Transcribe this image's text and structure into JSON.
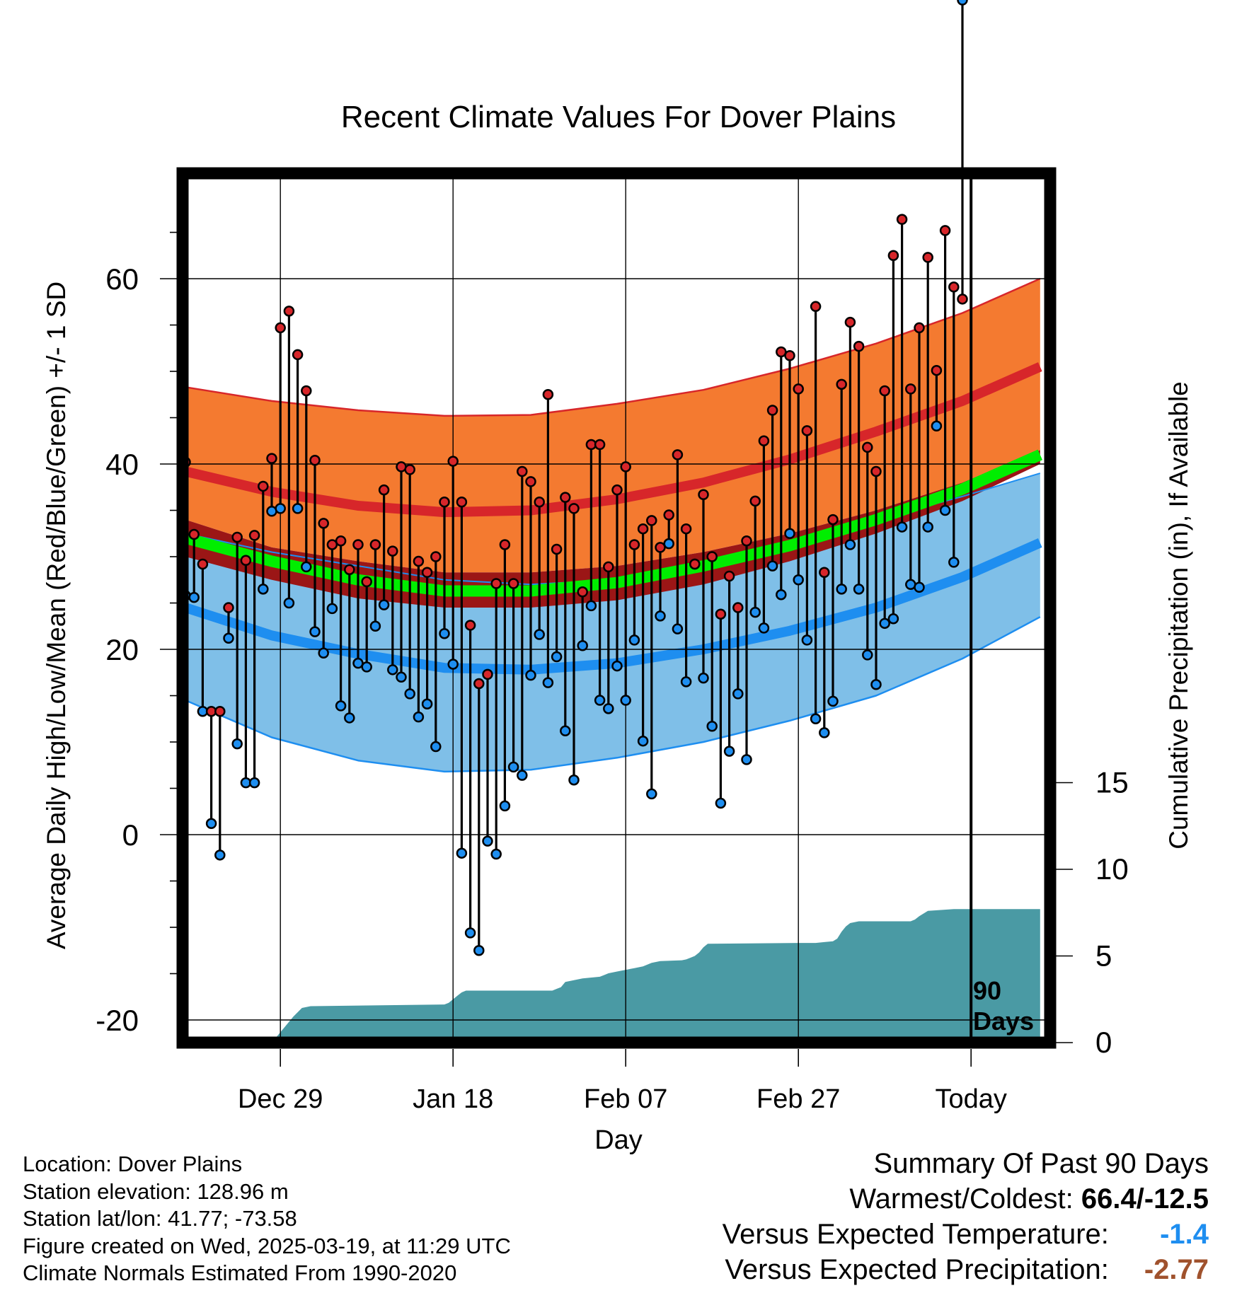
{
  "chart_data": {
    "type": "line",
    "title": "Recent Climate Values For Dover Plains",
    "xlabel": "Day",
    "ylabel": "Average Daily High/Low/Mean (Red/Blue/Green) +/- 1 SD",
    "y2label": "Cumulative Precipitation (in), If Available",
    "xticks": [
      "Dec 29",
      "Jan 18",
      "Feb 07",
      "Feb 27",
      "Today"
    ],
    "xtick_days": [
      11,
      31,
      51,
      71,
      91
    ],
    "xlim": [
      0,
      100
    ],
    "ylim": [
      -22,
      71
    ],
    "yticks": [
      -20,
      0,
      20,
      40,
      60
    ],
    "y2lim": [
      0,
      24
    ],
    "y2ticks": [
      0,
      5,
      10,
      15
    ],
    "today_label": [
      "90",
      "Days"
    ],
    "colors": {
      "high_band": "#f47a30",
      "high_mean": "#d7262a",
      "low_band": "#7fbfe8",
      "low_mean": "#1e8ef0",
      "mean_band": "#9b1616",
      "mean_line": "#00ee00",
      "precip": "#4a9aa4",
      "high_dot": "#d7262a",
      "low_dot": "#1e8ef0"
    },
    "normals": {
      "days": [
        0,
        10,
        20,
        30,
        40,
        50,
        60,
        70,
        80,
        90,
        99
      ],
      "high_mean": [
        39.2,
        37.0,
        35.5,
        34.8,
        35.0,
        36.2,
        38.0,
        40.5,
        43.5,
        46.8,
        50.5
      ],
      "high_plus_sd": [
        48.3,
        46.8,
        45.8,
        45.2,
        45.3,
        46.5,
        48.0,
        50.3,
        53.0,
        56.3,
        60.0
      ],
      "low_mean": [
        24.5,
        21.5,
        19.5,
        18.0,
        17.8,
        18.5,
        20.0,
        22.0,
        24.5,
        27.8,
        31.5
      ],
      "low_minus_sd": [
        14.5,
        10.5,
        8.0,
        6.8,
        7.0,
        8.3,
        10.0,
        12.3,
        15.0,
        19.0,
        23.5
      ],
      "low_plus_sd": [
        32.5,
        30.5,
        29.0,
        27.5,
        27.0,
        27.5,
        29.0,
        31.0,
        34.0,
        36.5,
        39.0
      ],
      "mean": [
        32.0,
        29.5,
        27.5,
        26.3,
        26.3,
        27.2,
        29.0,
        31.2,
        34.0,
        37.3,
        41.0
      ],
      "mean_band_high": [
        34.0,
        31.0,
        29.5,
        28.3,
        28.3,
        29.0,
        30.5,
        32.5,
        35.0,
        38.0,
        41.5
      ],
      "mean_band_low": [
        30.0,
        27.5,
        25.5,
        24.5,
        24.5,
        25.3,
        27.0,
        29.5,
        32.5,
        36.0,
        40.0
      ]
    },
    "series": [
      {
        "name": "High",
        "values": [
          40.2,
          32.4,
          29.2,
          13.3,
          13.3,
          24.5,
          32.1,
          29.6,
          32.3,
          37.6,
          40.6,
          54.7,
          56.5,
          51.8,
          47.9,
          40.4,
          33.6,
          31.3,
          31.7,
          28.6,
          31.3,
          27.3,
          31.3,
          37.2,
          30.6,
          39.7,
          39.4,
          29.5,
          28.3,
          30.0,
          35.9,
          40.3,
          35.9,
          22.6,
          16.3,
          17.3,
          27.1,
          31.3,
          27.1,
          39.2,
          38.1,
          35.9,
          47.5,
          30.8,
          36.4,
          35.2,
          26.2,
          42.1,
          42.1,
          28.9,
          37.2,
          39.7,
          31.3,
          33.0,
          33.9,
          31.0,
          34.5,
          41.0,
          33.0,
          29.2,
          36.7,
          30.0,
          23.8,
          27.9,
          24.5,
          31.7,
          36.0,
          42.5,
          45.8,
          52.1,
          51.7,
          48.1,
          43.6,
          57.0,
          28.3,
          34.0,
          48.6,
          55.3,
          52.7,
          41.8,
          39.2,
          47.9,
          62.5,
          66.4,
          48.1,
          54.7,
          62.3,
          50.1,
          65.2,
          59.1,
          57.8
        ]
      },
      {
        "name": "Low",
        "values": [
          25.8,
          25.6,
          13.3,
          1.2,
          -2.2,
          21.2,
          9.8,
          5.6,
          5.6,
          26.5,
          34.9,
          35.2,
          25.0,
          35.2,
          28.9,
          21.9,
          19.6,
          24.4,
          13.9,
          12.6,
          18.5,
          18.1,
          22.5,
          24.8,
          17.8,
          17.0,
          15.2,
          12.7,
          14.1,
          9.5,
          21.7,
          18.4,
          -2.0,
          -10.6,
          -12.5,
          -0.7,
          -2.1,
          3.1,
          7.3,
          6.4,
          17.2,
          21.6,
          16.4,
          19.2,
          11.2,
          5.9,
          20.4,
          24.7,
          14.5,
          13.6,
          18.2,
          14.5,
          21.0,
          10.1,
          4.4,
          23.6,
          31.4,
          22.2,
          16.5,
          29.2,
          16.9,
          11.7,
          3.4,
          9.0,
          15.2,
          8.1,
          24.0,
          22.3,
          29.0,
          25.9,
          32.5,
          27.5,
          21.0,
          12.5,
          11.0,
          14.4,
          26.5,
          31.3,
          26.5,
          19.4,
          16.2,
          22.8,
          23.3,
          33.2,
          27.0,
          26.7,
          33.2,
          44.1,
          35.0,
          29.4
        ]
      }
    ],
    "precip_cumulative": {
      "days": [
        0,
        10,
        10.5,
        11.5,
        12.5,
        13.5,
        14.5,
        30,
        30.5,
        31,
        31.5,
        32,
        32.5,
        42.5,
        43,
        43.5,
        44,
        45,
        46,
        48,
        48.5,
        49,
        50,
        51,
        52,
        53,
        53.5,
        54,
        55,
        57.5,
        58,
        58.5,
        59,
        59.5,
        60,
        60.5,
        71,
        73,
        74,
        75,
        75.5,
        76,
        76.5,
        77,
        78,
        84,
        84.5,
        85,
        86,
        89,
        99
      ],
      "values": [
        0,
        0,
        0.3,
        0.9,
        1.5,
        2.0,
        2.1,
        2.2,
        2.3,
        2.5,
        2.7,
        2.9,
        3.0,
        3.0,
        3.1,
        3.2,
        3.5,
        3.6,
        3.7,
        3.8,
        3.9,
        4.0,
        4.1,
        4.2,
        4.3,
        4.4,
        4.5,
        4.6,
        4.7,
        4.75,
        4.8,
        4.9,
        5.0,
        5.2,
        5.5,
        5.7,
        5.75,
        5.75,
        5.8,
        5.85,
        6.0,
        6.4,
        6.7,
        6.9,
        7.0,
        7.0,
        7.1,
        7.3,
        7.6,
        7.7,
        7.7
      ]
    }
  },
  "footer": {
    "location": "Location: Dover Plains",
    "elevation": "Station elevation: 128.96 m",
    "latlon": "Station lat/lon: 41.77; -73.58",
    "created": "Figure created on Wed, 2025-03-19, at 11:29 UTC",
    "normals": "Climate Normals Estimated From 1990-2020"
  },
  "summary": {
    "title": "Summary Of Past 90 Days",
    "warmest_coldest_label": "Warmest/Coldest:",
    "warmest_coldest_value": "66.4/-12.5",
    "temp_label": "Versus Expected Temperature:",
    "temp_value": "-1.4",
    "temp_color": "#1e8ef0",
    "precip_label": "Versus Expected Precipitation:",
    "precip_value": "-2.77",
    "precip_color": "#a0522d"
  }
}
